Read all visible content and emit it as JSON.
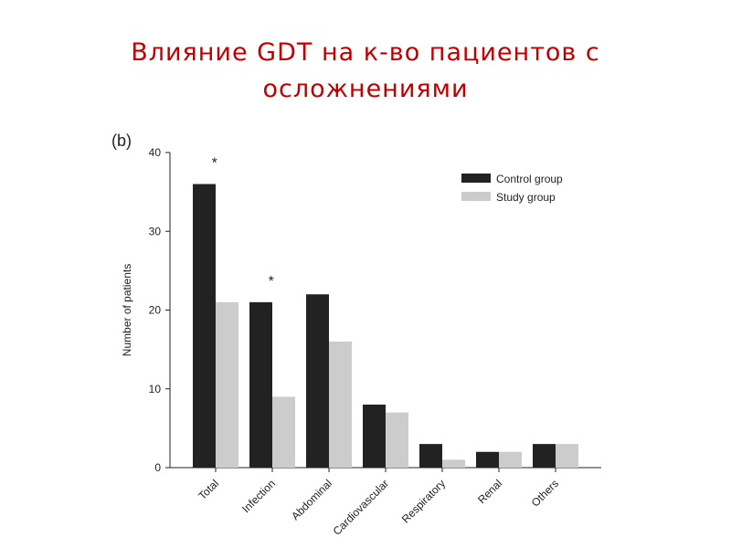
{
  "slide": {
    "title": "Влияние GDT на к-во пациентов с осложнениями"
  },
  "chart_data": {
    "type": "bar",
    "panel_label": "(b)",
    "categories": [
      "Total",
      "Infection",
      "Abdominal",
      "Cardiovascular",
      "Respiratory",
      "Renal",
      "Others"
    ],
    "series": [
      {
        "name": "Control group",
        "color": "#222222",
        "values": [
          36,
          21,
          22,
          8,
          3,
          2,
          3
        ]
      },
      {
        "name": "Study group",
        "color": "#cccccc",
        "values": [
          21,
          9,
          16,
          7,
          1,
          2,
          3
        ]
      }
    ],
    "significance": [
      "*",
      "*",
      "",
      "",
      "",
      "",
      ""
    ],
    "xlabel": "",
    "ylabel": "Number of patients",
    "ylim": [
      0,
      40
    ],
    "yticks": [
      0,
      10,
      20,
      30,
      40
    ],
    "legend_position": "top-right",
    "grid": false
  }
}
